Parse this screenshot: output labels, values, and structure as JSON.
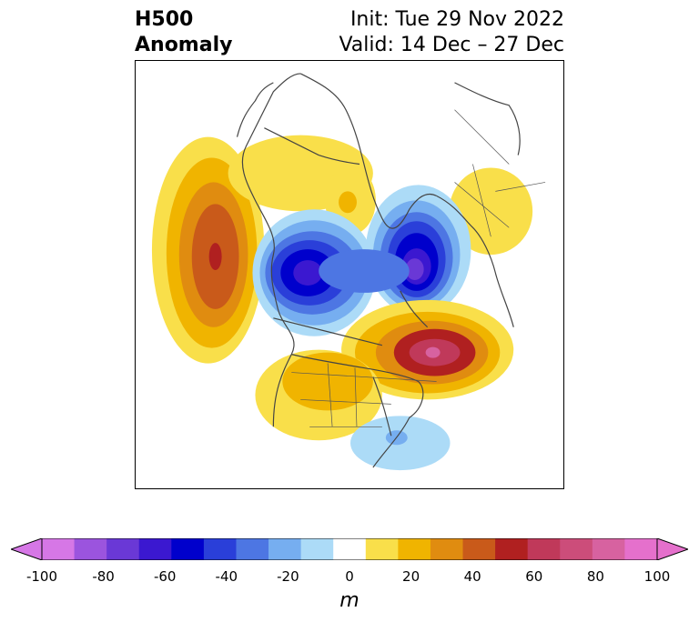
{
  "header": {
    "title_line1": "H500",
    "title_line2": "Anomaly",
    "init": "Init: Tue 29 Nov 2022",
    "valid": "Valid: 14 Dec – 27 Dec"
  },
  "map": {
    "field": "500 hPa geopotential height anomaly",
    "projection": "north polar stereographic",
    "anomaly_features": [
      {
        "sign": "positive",
        "peak_m": 60,
        "region": "North Pacific / Bering Sea"
      },
      {
        "sign": "positive",
        "peak_m": 20,
        "region": "Northeast Siberia"
      },
      {
        "sign": "positive",
        "peak_m": 20,
        "region": "Western Russia / Scandinavia"
      },
      {
        "sign": "negative",
        "peak_m": -80,
        "region": "Siberian Arctic"
      },
      {
        "sign": "negative",
        "peak_m": -70,
        "region": "Greenland / North Atlantic"
      },
      {
        "sign": "positive",
        "peak_m": 70,
        "region": "Canada / Hudson Bay"
      },
      {
        "sign": "positive",
        "peak_m": 30,
        "region": "Western United States"
      },
      {
        "sign": "negative",
        "peak_m": -30,
        "region": "Southeastern United States"
      }
    ]
  },
  "colorbar": {
    "unit": "m",
    "ticks": [
      "-100",
      "-80",
      "-60",
      "-40",
      "-20",
      "0",
      "20",
      "40",
      "60",
      "80",
      "100"
    ],
    "levels": [
      -100,
      -90,
      -80,
      -70,
      -60,
      -50,
      -40,
      -30,
      -20,
      -10,
      10,
      20,
      30,
      40,
      50,
      60,
      70,
      80,
      90,
      100
    ],
    "colors": [
      "#d677e6",
      "#9b54de",
      "#6a38d6",
      "#3b18d0",
      "#0000cc",
      "#2a3fd9",
      "#4d76e3",
      "#76aef0",
      "#acdbf7",
      "#ffffff",
      "#f9df4a",
      "#f0b400",
      "#e08c10",
      "#c95a1a",
      "#b02020",
      "#c0395a",
      "#cc4d7a",
      "#d762a0",
      "#e570cc"
    ],
    "extend_under_color": "#d677e6",
    "extend_over_color": "#e570cc"
  }
}
